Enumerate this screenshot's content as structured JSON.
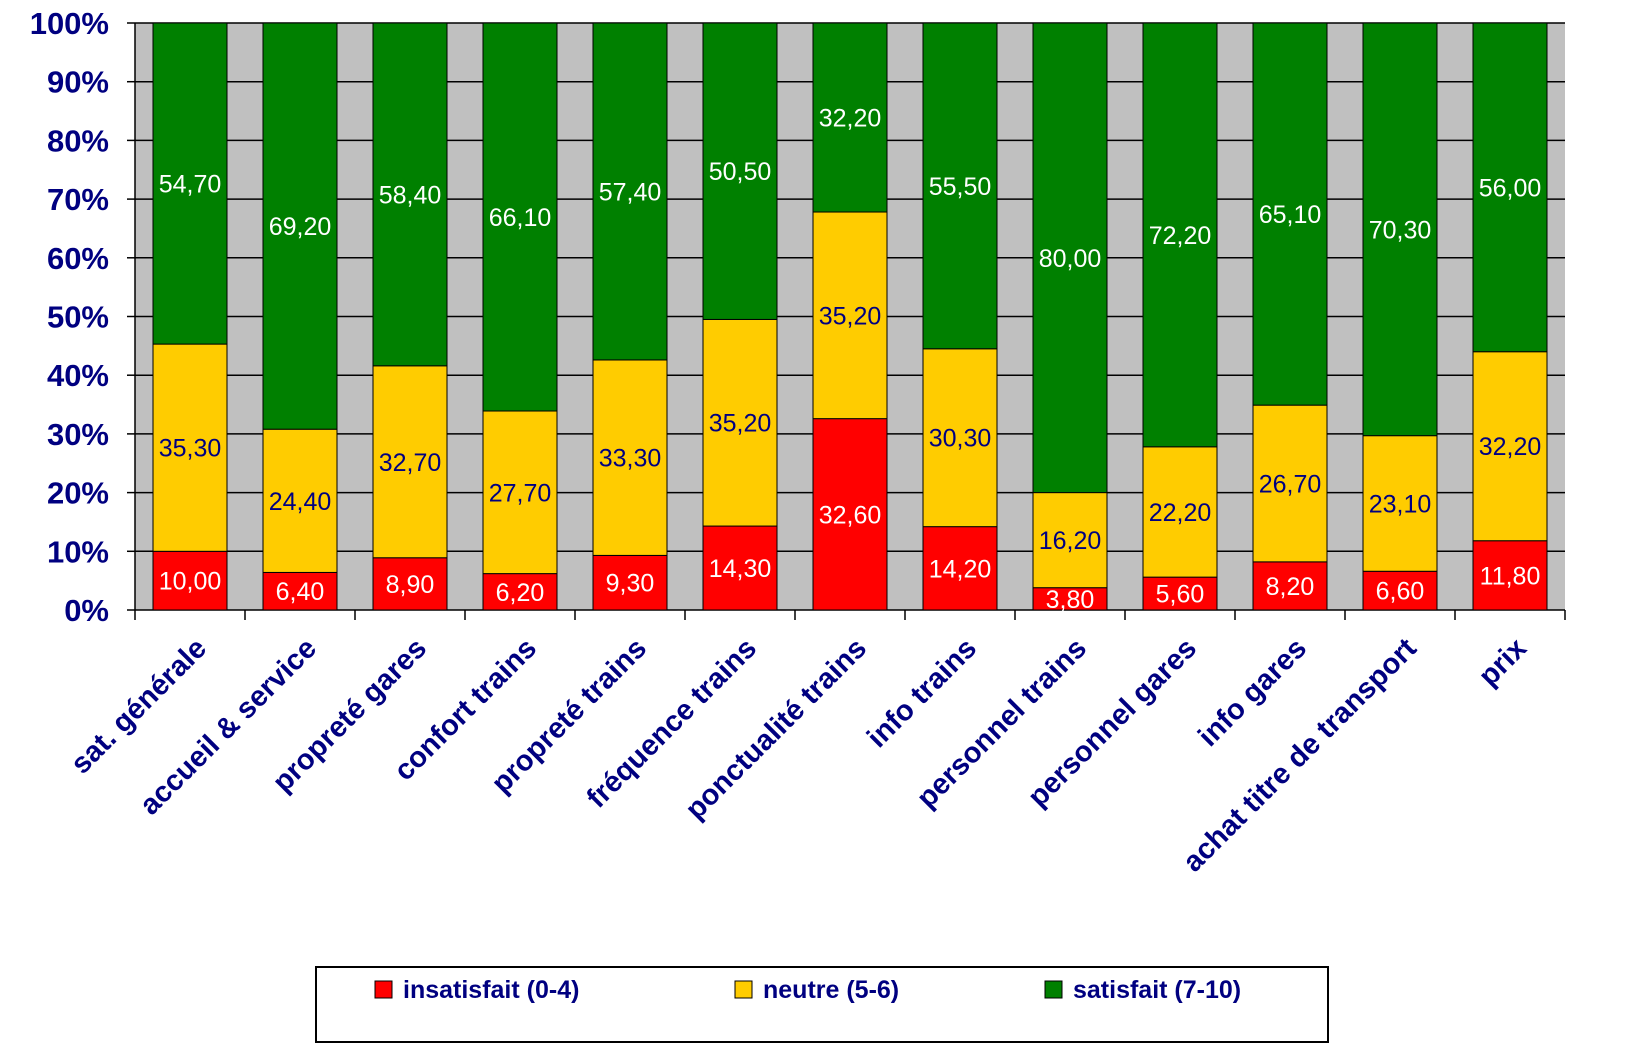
{
  "chart_data": {
    "type": "bar",
    "stacked": true,
    "percent_stacked": true,
    "categories": [
      "sat. générale",
      "accueil & service",
      "propreté gares",
      "confort trains",
      "propreté trains",
      "fréquence trains",
      "ponctualité trains",
      "info trains",
      "personnel trains",
      "personnel gares",
      "info gares",
      "achat titre de transport",
      "prix"
    ],
    "series": [
      {
        "name": "insatisfait (0-4)",
        "color": "#ff0000",
        "values": [
          10.0,
          6.4,
          8.9,
          6.2,
          9.3,
          14.3,
          32.6,
          14.2,
          3.8,
          5.6,
          8.2,
          6.6,
          11.8
        ],
        "labels": [
          "10,00",
          "6,40",
          "8,90",
          "6,20",
          "9,30",
          "14,30",
          "32,60",
          "14,20",
          "3,80",
          "5,60",
          "8,20",
          "6,60",
          "11,80"
        ],
        "label_color": "#ffffff"
      },
      {
        "name": "neutre (5-6)",
        "color": "#ffcc00",
        "values": [
          35.3,
          24.4,
          32.7,
          27.7,
          33.3,
          35.2,
          35.2,
          30.3,
          16.2,
          22.2,
          26.7,
          23.1,
          32.2
        ],
        "labels": [
          "35,30",
          "24,40",
          "32,70",
          "27,70",
          "33,30",
          "35,20",
          "35,20",
          "30,30",
          "16,20",
          "22,20",
          "26,70",
          "23,10",
          "32,20"
        ],
        "label_color": "#000080"
      },
      {
        "name": "satisfait (7-10)",
        "color": "#008000",
        "values": [
          54.7,
          69.2,
          58.4,
          66.1,
          57.4,
          50.5,
          32.2,
          55.5,
          80.0,
          72.2,
          65.1,
          70.3,
          56.0
        ],
        "labels": [
          "54,70",
          "69,20",
          "58,40",
          "66,10",
          "57,40",
          "50,50",
          "32,20",
          "55,50",
          "80,00",
          "72,20",
          "65,10",
          "70,30",
          "56,00"
        ],
        "label_color": "#ffffff"
      }
    ],
    "y_ticks": [
      "0%",
      "10%",
      "20%",
      "30%",
      "40%",
      "50%",
      "60%",
      "70%",
      "80%",
      "90%",
      "100%"
    ],
    "ylim": [
      0,
      100
    ],
    "grid": true,
    "plot_background": "#c0c0c0",
    "gridline_color": "#000000",
    "legend_position": "bottom",
    "tick_label_color": "#000080"
  }
}
